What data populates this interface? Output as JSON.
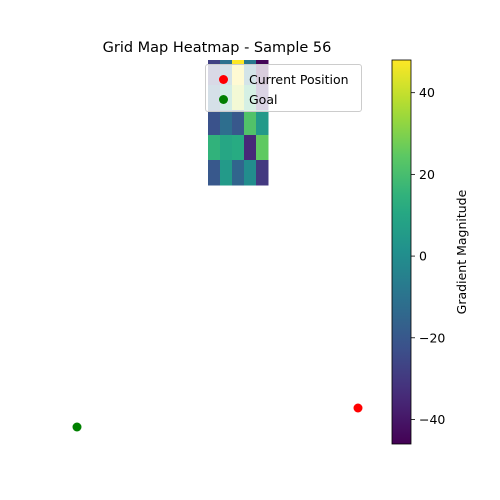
{
  "chart_data": {
    "type": "heatmap",
    "title": "Grid Map Heatmap - Sample 56",
    "grid": [
      [
        -28,
        -10,
        48,
        -8,
        -45
      ],
      [
        -15,
        10,
        40,
        15,
        -35
      ],
      [
        -22,
        -12,
        -20,
        22,
        5
      ],
      [
        15,
        10,
        12,
        -35,
        25
      ],
      [
        -20,
        5,
        -15,
        0,
        -30
      ]
    ],
    "markers": [
      {
        "name": "Current Position",
        "color": "#ff0000"
      },
      {
        "name": "Goal",
        "color": "#008000"
      }
    ],
    "legend_position": "upper right",
    "colorbar": {
      "label": "Gradient Magnitude",
      "colormap": "viridis",
      "min": -46,
      "max": 48,
      "ticks": [
        40,
        20,
        0,
        -20,
        -40
      ]
    },
    "axes_visible": false
  }
}
